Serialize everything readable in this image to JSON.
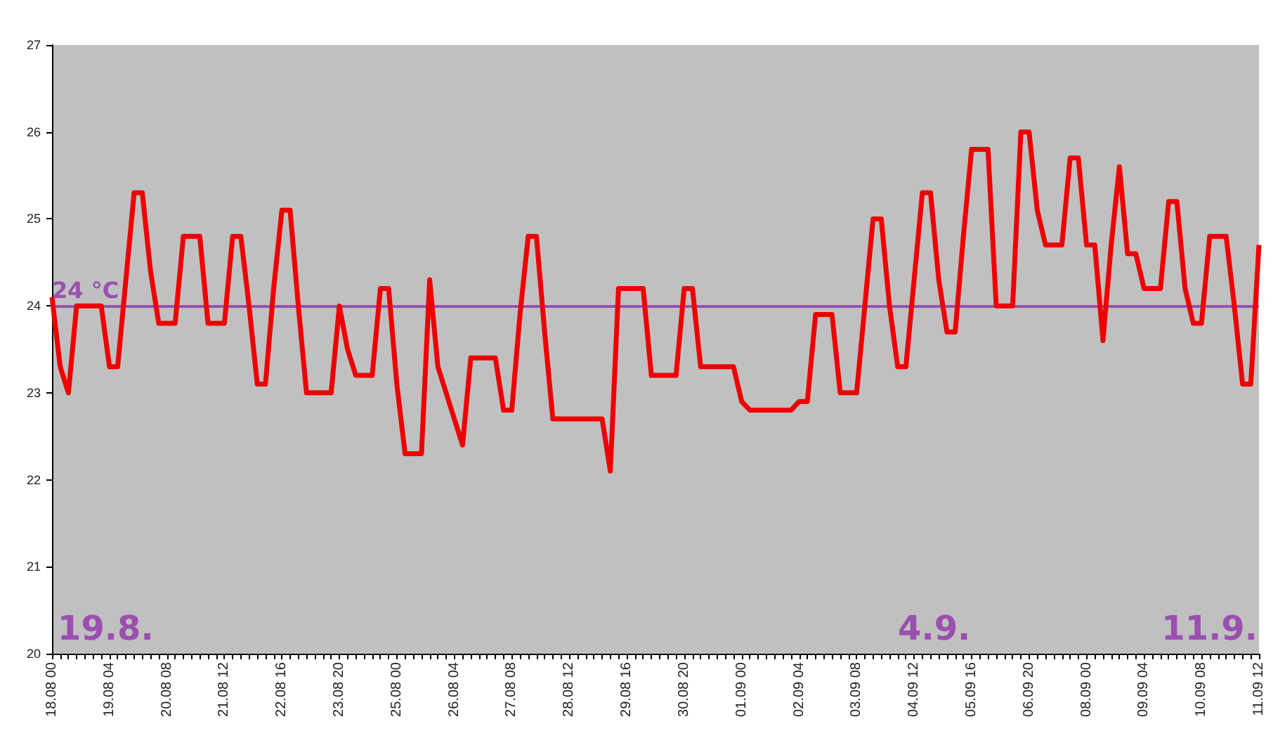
{
  "chart_data": {
    "type": "line",
    "categories": [
      "18.08 00",
      null,
      null,
      null,
      null,
      null,
      null,
      "19.08 04",
      null,
      null,
      null,
      null,
      null,
      null,
      "20.08 08",
      null,
      null,
      null,
      null,
      null,
      null,
      "21.08 12",
      null,
      null,
      null,
      null,
      null,
      null,
      "22.08 16",
      null,
      null,
      null,
      null,
      null,
      null,
      "23.08 20",
      null,
      null,
      null,
      null,
      null,
      null,
      "25.08 00",
      null,
      null,
      null,
      null,
      null,
      null,
      "26.08 04",
      null,
      null,
      null,
      null,
      null,
      null,
      "27.08 08",
      null,
      null,
      null,
      null,
      null,
      null,
      "28.08 12",
      null,
      null,
      null,
      null,
      null,
      null,
      "29.08 16",
      null,
      null,
      null,
      null,
      null,
      null,
      "30.08 20",
      null,
      null,
      null,
      null,
      null,
      null,
      "01.09 00",
      null,
      null,
      null,
      null,
      null,
      null,
      "02.09 04",
      null,
      null,
      null,
      null,
      null,
      null,
      "03.09 08",
      null,
      null,
      null,
      null,
      null,
      null,
      "04.09 12",
      null,
      null,
      null,
      null,
      null,
      null,
      "05.09 16",
      null,
      null,
      null,
      null,
      null,
      null,
      "06.09 20",
      null,
      null,
      null,
      null,
      null,
      null,
      "08.09 00",
      null,
      null,
      null,
      null,
      null,
      null,
      "09.09 04",
      null,
      null,
      null,
      null,
      null,
      null,
      "10.09 08",
      null,
      null,
      null,
      null,
      null,
      null,
      "11.09 12"
    ],
    "series": [
      {
        "color": "#ee0000",
        "values": [
          24.1,
          23.3,
          23.0,
          24.0,
          24.0,
          24.0,
          24.0,
          23.3,
          23.3,
          24.3,
          25.3,
          25.3,
          24.4,
          23.8,
          23.8,
          23.8,
          24.8,
          24.8,
          24.8,
          23.8,
          23.8,
          23.8,
          24.8,
          24.8,
          24.0,
          23.1,
          23.1,
          24.2,
          25.1,
          25.1,
          24.0,
          23.0,
          23.0,
          23.0,
          23.0,
          24.0,
          23.5,
          23.2,
          23.2,
          23.2,
          24.2,
          24.2,
          23.1,
          22.3,
          22.3,
          22.3,
          24.3,
          23.3,
          23.0,
          22.7,
          22.4,
          23.4,
          23.4,
          23.4,
          23.4,
          22.8,
          22.8,
          23.9,
          24.8,
          24.8,
          23.7,
          22.7,
          22.7,
          22.7,
          22.7,
          22.7,
          22.7,
          22.7,
          22.1,
          24.2,
          24.2,
          24.2,
          24.2,
          23.2,
          23.2,
          23.2,
          23.2,
          24.2,
          24.2,
          23.3,
          23.3,
          23.3,
          23.3,
          23.3,
          22.9,
          22.8,
          22.8,
          22.8,
          22.8,
          22.8,
          22.8,
          22.9,
          22.9,
          23.9,
          23.9,
          23.9,
          23.0,
          23.0,
          23.0,
          24.0,
          25.0,
          25.0,
          24.0,
          23.3,
          23.3,
          24.3,
          25.3,
          25.3,
          24.3,
          23.7,
          23.7,
          24.8,
          25.8,
          25.8,
          25.8,
          24.0,
          24.0,
          24.0,
          26.0,
          26.0,
          25.1,
          24.7,
          24.7,
          24.7,
          25.7,
          25.7,
          24.7,
          24.7,
          23.6,
          24.7,
          25.6,
          24.6,
          24.6,
          24.2,
          24.2,
          24.2,
          25.2,
          25.2,
          24.2,
          23.8,
          23.8,
          24.8,
          24.8,
          24.8,
          24.0,
          23.1,
          23.1,
          24.7
        ]
      }
    ],
    "ylim": [
      20,
      27
    ],
    "yticks": [
      20,
      21,
      22,
      23,
      24,
      25,
      26,
      27
    ],
    "ref_lines": [
      {
        "axis": "y",
        "value": 24,
        "label": "24 °C",
        "color": "#9b4fb0"
      }
    ],
    "annotations": [
      "19.8.",
      "4.9.",
      "11.9."
    ],
    "marker": "none",
    "line_style": "solid",
    "grid": false
  }
}
